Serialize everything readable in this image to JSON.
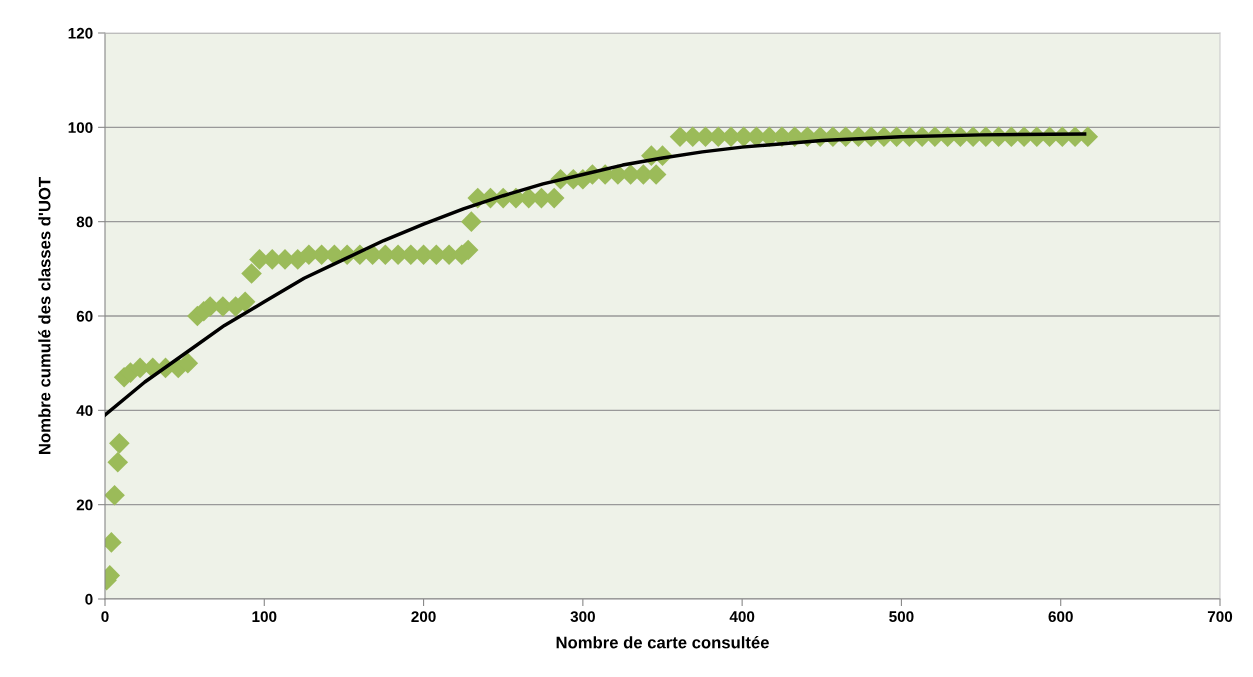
{
  "chart_data": {
    "type": "scatter",
    "xlabel": "Nombre de carte consultée",
    "ylabel": "Nombre cumulé des classes d'UOT",
    "xlim": [
      0,
      700
    ],
    "xticks": [
      0,
      100,
      200,
      300,
      400,
      500,
      600,
      700
    ],
    "ylim": [
      0,
      120
    ],
    "yticks": [
      0,
      20,
      40,
      60,
      80,
      100,
      120
    ],
    "grid": "y",
    "series": [
      {
        "marker": "diamond",
        "color": "#9bbb59",
        "x": [
          1,
          3,
          4,
          6,
          8,
          9,
          12,
          16,
          22,
          30,
          38,
          46,
          52,
          58,
          62,
          66,
          74,
          82,
          88,
          92,
          97,
          105,
          113,
          121,
          128,
          136,
          144,
          152,
          160,
          168,
          176,
          184,
          192,
          200,
          208,
          216,
          224,
          228,
          230,
          234,
          242,
          250,
          258,
          266,
          274,
          282,
          286,
          294,
          300,
          306,
          314,
          322,
          330,
          338,
          346,
          343,
          350,
          361,
          369,
          377,
          385,
          393,
          401,
          409,
          417,
          425,
          433,
          441,
          449,
          457,
          465,
          473,
          481,
          489,
          497,
          505,
          513,
          521,
          529,
          537,
          545,
          553,
          561,
          569,
          577,
          585,
          593,
          601,
          609,
          617
        ],
        "values": [
          4,
          5,
          12,
          22,
          29,
          33,
          47,
          48,
          49,
          49,
          49,
          49,
          50,
          60,
          61,
          62,
          62,
          62,
          63,
          69,
          72,
          72,
          72,
          72,
          73,
          73,
          73,
          73,
          73,
          73,
          73,
          73,
          73,
          73,
          73,
          73,
          73,
          74,
          80,
          85,
          85,
          85,
          85,
          85,
          85,
          85,
          89,
          89,
          89,
          90,
          90,
          90,
          90,
          90,
          90,
          94,
          94,
          98,
          98,
          98,
          98,
          98,
          98,
          98,
          98,
          98,
          98,
          98,
          98,
          98,
          98,
          98,
          98,
          98,
          98,
          98,
          98,
          98,
          98,
          98,
          98,
          98,
          98,
          98,
          98,
          98,
          98,
          98,
          98,
          98
        ]
      },
      {
        "type": "line",
        "marker": "none",
        "line_style": "solid",
        "color": "#000000",
        "x": [
          0,
          25,
          50,
          75,
          100,
          125,
          150,
          175,
          200,
          225,
          250,
          275,
          300,
          325,
          350,
          375,
          400,
          450,
          500,
          550,
          615
        ],
        "values": [
          39,
          46,
          52,
          58,
          63,
          68,
          72,
          76,
          79.5,
          82.7,
          85.5,
          88,
          90,
          92,
          93.5,
          94.8,
          95.8,
          97.2,
          98,
          98.4,
          98.6
        ]
      }
    ]
  }
}
